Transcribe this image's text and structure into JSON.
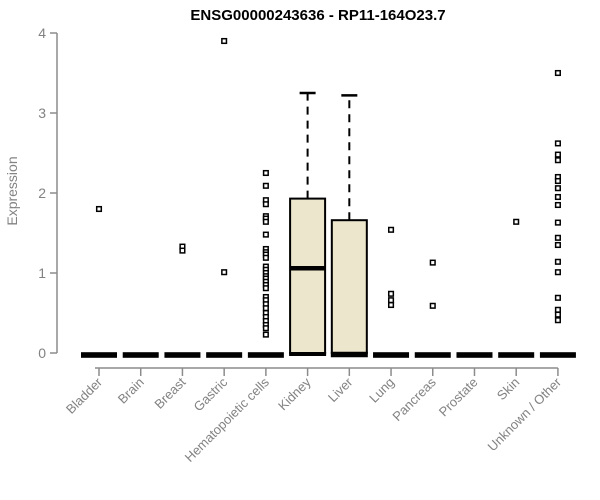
{
  "title": "ENSG00000243636 - RP11-164O23.7",
  "chart_data": {
    "type": "boxplot",
    "title": "ENSG00000243636 - RP11-164O23.7",
    "xlabel": "",
    "ylabel": "Expression",
    "ylim": [
      0,
      4
    ],
    "yticks": [
      0,
      1,
      2,
      3,
      4
    ],
    "grid": false,
    "legend": false,
    "box_fill": "#ECE6CC",
    "box_stroke": "#000000",
    "axis_color": "#8C8C8C",
    "label_color": "#828282",
    "outlier_shape": "open-square",
    "categories": [
      "Bladder",
      "Brain",
      "Breast",
      "Gastric",
      "Hematopoietic cells",
      "Kidney",
      "Liver",
      "Lung",
      "Pancreas",
      "Prostate",
      "Skin",
      "Unknown / Other"
    ],
    "series": [
      {
        "category": "Bladder",
        "collapsed": true,
        "median": 0,
        "q1": 0,
        "q3": 0,
        "whisker_low": 0,
        "whisker_high": 0,
        "outliers": [
          1.8
        ]
      },
      {
        "category": "Brain",
        "collapsed": true,
        "median": 0,
        "q1": 0,
        "q3": 0,
        "whisker_low": 0,
        "whisker_high": 0,
        "outliers": []
      },
      {
        "category": "Breast",
        "collapsed": true,
        "median": 0,
        "q1": 0,
        "q3": 0,
        "whisker_low": 0,
        "whisker_high": 0,
        "outliers": [
          1.33,
          1.28
        ]
      },
      {
        "category": "Gastric",
        "collapsed": true,
        "median": 0,
        "q1": 0,
        "q3": 0,
        "whisker_low": 0,
        "whisker_high": 0,
        "outliers": [
          3.9,
          1.01
        ]
      },
      {
        "category": "Hematopoietic cells",
        "collapsed": true,
        "median": 0,
        "q1": 0,
        "q3": 0,
        "whisker_low": 0,
        "whisker_high": 0,
        "outliers": [
          2.25,
          2.09,
          1.91,
          1.86,
          1.71,
          1.68,
          1.64,
          1.48,
          1.3,
          1.26,
          1.23,
          1.19,
          1.08,
          1.04,
          1.0,
          0.96,
          0.93,
          0.89,
          0.85,
          0.81,
          0.7,
          0.66,
          0.61,
          0.56,
          0.5,
          0.45,
          0.4,
          0.35,
          0.31,
          0.23
        ]
      },
      {
        "category": "Kidney",
        "collapsed": false,
        "median": 1.06,
        "q1": 0,
        "q3": 1.93,
        "whisker_low": 0,
        "whisker_high": 3.25,
        "outliers": []
      },
      {
        "category": "Liver",
        "collapsed": false,
        "median": 0,
        "q1": 0,
        "q3": 1.66,
        "whisker_low": 0,
        "whisker_high": 3.22,
        "outliers": []
      },
      {
        "category": "Lung",
        "collapsed": true,
        "median": 0,
        "q1": 0,
        "q3": 0,
        "whisker_low": 0,
        "whisker_high": 0,
        "outliers": [
          1.54,
          0.74,
          0.66,
          0.6
        ]
      },
      {
        "category": "Pancreas",
        "collapsed": true,
        "median": 0,
        "q1": 0,
        "q3": 0,
        "whisker_low": 0,
        "whisker_high": 0,
        "outliers": [
          1.13,
          0.59
        ]
      },
      {
        "category": "Prostate",
        "collapsed": true,
        "median": 0,
        "q1": 0,
        "q3": 0,
        "whisker_low": 0,
        "whisker_high": 0,
        "outliers": []
      },
      {
        "category": "Skin",
        "collapsed": true,
        "median": 0,
        "q1": 0,
        "q3": 0,
        "whisker_low": 0,
        "whisker_high": 0,
        "outliers": [
          1.64
        ]
      },
      {
        "category": "Unknown / Other",
        "collapsed": true,
        "median": 0,
        "q1": 0,
        "q3": 0,
        "whisker_low": 0,
        "whisker_high": 0,
        "outliers": [
          3.5,
          2.62,
          2.48,
          2.41,
          2.2,
          2.15,
          2.06,
          1.95,
          1.85,
          1.63,
          1.44,
          1.35,
          1.14,
          1.01,
          0.69,
          0.54,
          0.48,
          0.41
        ]
      }
    ]
  }
}
